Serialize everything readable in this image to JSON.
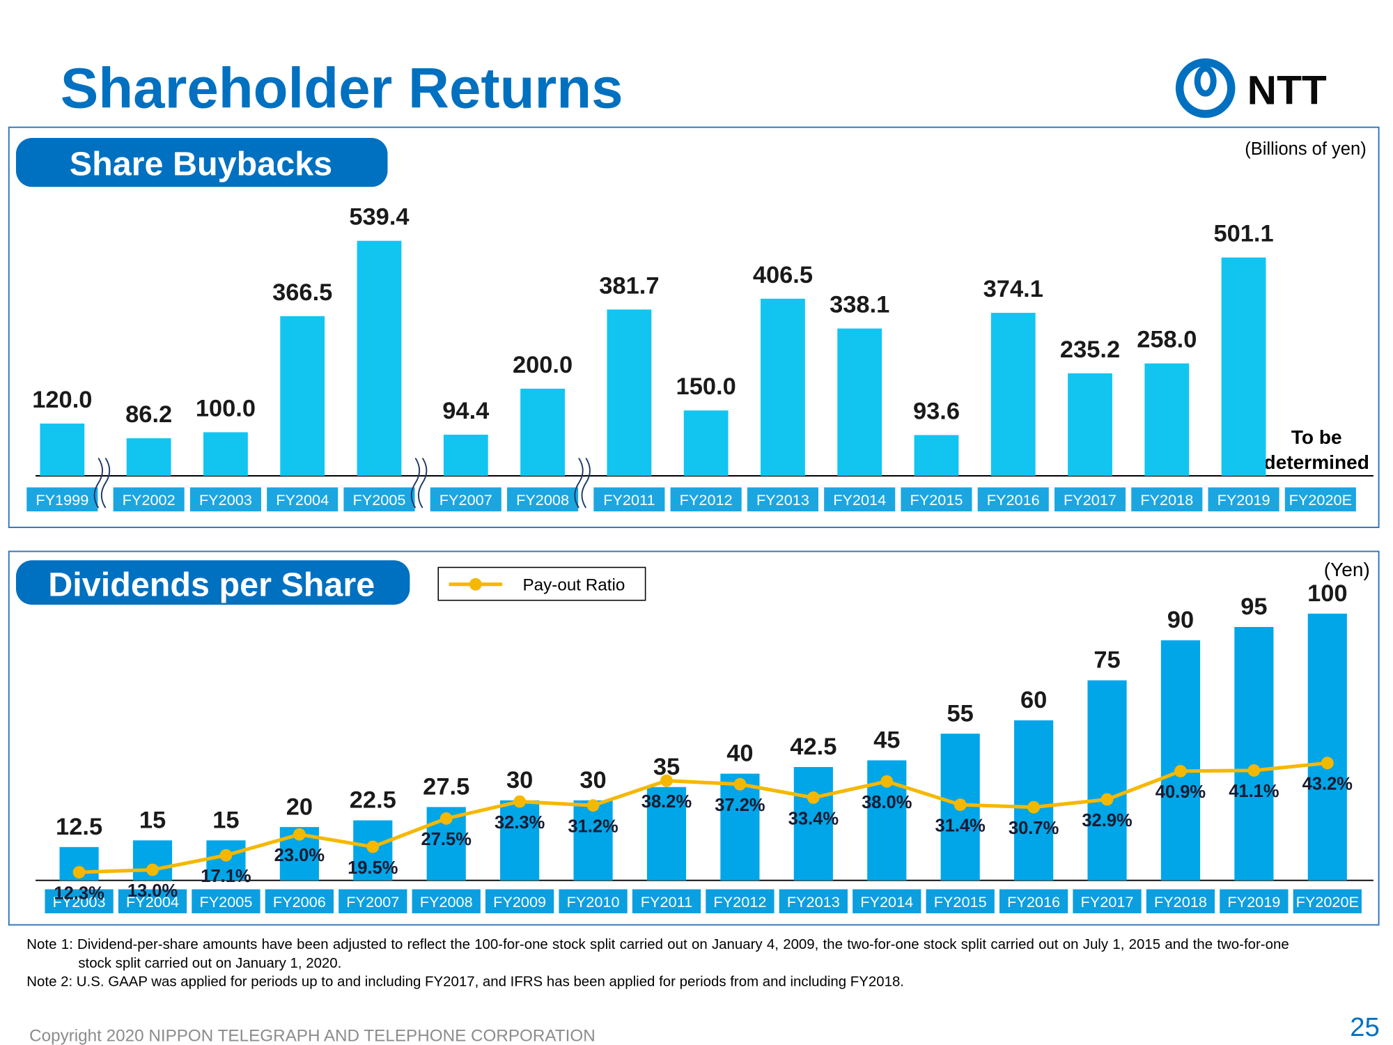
{
  "title": "Shareholder Returns",
  "logo": "NTT",
  "chart_data": [
    {
      "type": "bar",
      "title": "Share Buybacks",
      "unit": "(Billions of yen)",
      "categories": [
        "FY1999",
        "FY2002",
        "FY2003",
        "FY2004",
        "FY2005",
        "FY2007",
        "FY2008",
        "FY2011",
        "FY2012",
        "FY2013",
        "FY2014",
        "FY2015",
        "FY2016",
        "FY2017",
        "FY2018",
        "FY2019",
        "FY2020E"
      ],
      "values": [
        120,
        86.2,
        100,
        366.5,
        539.4,
        94.4,
        200,
        381.7,
        150,
        406.5,
        338.1,
        93.6,
        374.1,
        235.2,
        258,
        501.1,
        null
      ],
      "value_labels": [
        "120.0",
        "86.2",
        "100.0",
        "366.5",
        "539.4",
        "94.4",
        "200.0",
        "381.7",
        "150.0",
        "406.5",
        "338.1",
        "93.6",
        "374.1",
        "235.2",
        "258.0",
        "501.1",
        null
      ],
      "annotation": "To be determined",
      "color": "#12c5f0",
      "ylim": [
        0,
        600
      ]
    },
    {
      "type": "combo",
      "title": "Dividends per Share",
      "unit": "(Yen)",
      "categories": [
        "FY2003",
        "FY2004",
        "FY2005",
        "FY2006",
        "FY2007",
        "FY2008",
        "FY2009",
        "FY2010",
        "FY2011",
        "FY2012",
        "FY2013",
        "FY2014",
        "FY2015",
        "FY2016",
        "FY2017",
        "FY2018",
        "FY2019",
        "FY2020E"
      ],
      "values": [
        12.5,
        15,
        15,
        20,
        22.5,
        27.5,
        30,
        30,
        35,
        40,
        42.5,
        45,
        55,
        60,
        75,
        90,
        95,
        100
      ],
      "color": "#00a6e8",
      "ylim": [
        0,
        110
      ],
      "series": [
        {
          "name": "Pay-out Ratio",
          "color": "#f5b800",
          "axis": "y2",
          "values": [
            12.3,
            13.0,
            17.1,
            23.0,
            19.5,
            27.5,
            32.3,
            31.2,
            38.2,
            37.2,
            33.4,
            38.0,
            31.4,
            30.7,
            32.9,
            40.9,
            41.1,
            43.2
          ],
          "value_labels": [
            "12.3%",
            "13.0%",
            "17.1%",
            "23.0%",
            "19.5%",
            "27.5%",
            "32.3%",
            "31.2%",
            "38.2%",
            "37.2%",
            "33.4%",
            "38.0%",
            "31.4%",
            "30.7%",
            "32.9%",
            "40.9%",
            "41.1%",
            "43.2%"
          ]
        }
      ],
      "y2lim": [
        10,
        93
      ]
    }
  ],
  "notes": [
    "Note 1: Dividend-per-share amounts have been adjusted to reflect the 100-for-one stock split carried out on January 4, 2009, the two-for-one stock split carried out on July 1, 2015 and the two-for-one stock split carried out on January 1, 2020.",
    "Note 2: U.S. GAAP was applied for periods up to and including FY2017, and IFRS has been applied for periods from and including FY2018."
  ],
  "copyright": "Copyright 2020 NIPPON TELEGRAPH AND TELEPHONE CORPORATION",
  "page_number": "25"
}
